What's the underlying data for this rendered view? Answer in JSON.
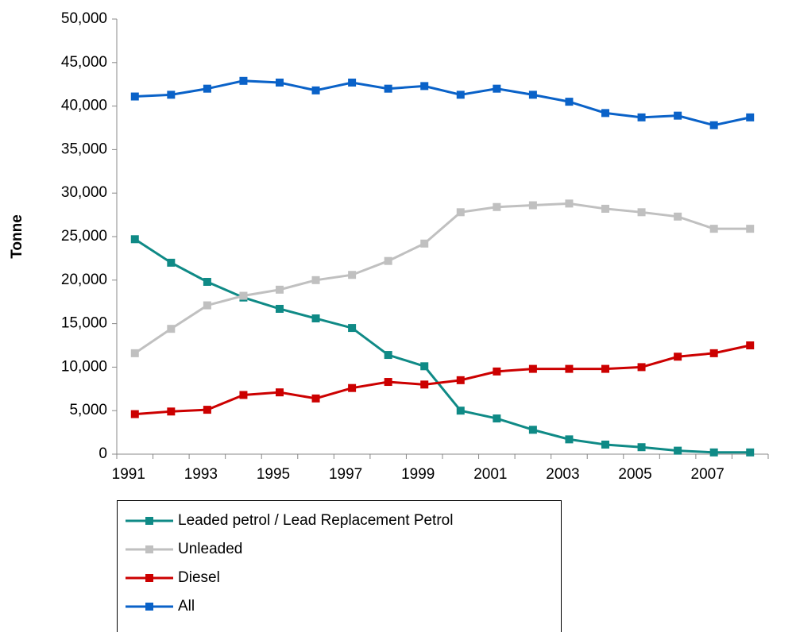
{
  "chart_data": {
    "type": "line",
    "y_label": "Tonne",
    "categories": [
      "1991",
      null,
      "1993",
      null,
      "1995",
      null,
      "1997",
      null,
      "1999",
      null,
      "2001",
      null,
      "2003",
      null,
      "2005",
      null,
      "2007",
      null
    ],
    "ylim": [
      0,
      50000
    ],
    "yticks": [
      0,
      {
        "value": 5000,
        "label": "5,000"
      },
      {
        "value": 10000,
        "label": "10,000"
      },
      {
        "value": 15000,
        "label": "15,000"
      },
      {
        "value": 20000,
        "label": "20,000"
      },
      {
        "value": 25000,
        "label": "25,000"
      },
      {
        "value": 30000,
        "label": "30,000"
      },
      {
        "value": 35000,
        "label": "35,000"
      },
      {
        "value": 40000,
        "label": "40,000"
      },
      {
        "value": 45000,
        "label": "45,000"
      },
      {
        "value": 50000,
        "label": "50,000"
      }
    ],
    "legend": "bottom",
    "series": [
      {
        "name": "Leaded petrol / Lead Replacement Petrol",
        "color": "#0f8a86",
        "values": [
          24700,
          22000,
          19800,
          18000,
          16700,
          15600,
          14500,
          11400,
          10100,
          5000,
          4100,
          2800,
          1700,
          1100,
          800,
          400,
          200,
          200
        ]
      },
      {
        "name": "Unleaded",
        "color": "#c0c0c0",
        "values": [
          11600,
          14400,
          17100,
          18200,
          18900,
          20000,
          20600,
          22200,
          24200,
          27800,
          28400,
          28600,
          28800,
          28200,
          27800,
          27300,
          25900,
          25900
        ]
      },
      {
        "name": "Diesel",
        "color": "#cc0000",
        "values": [
          4600,
          4900,
          5100,
          6800,
          7100,
          6400,
          7600,
          8300,
          8000,
          8500,
          9500,
          9800,
          9800,
          9800,
          10000,
          11200,
          11600,
          12500
        ]
      },
      {
        "name": "All",
        "color": "#0a62c8",
        "values": [
          41100,
          41300,
          42000,
          42900,
          42700,
          41800,
          42700,
          42000,
          42300,
          41300,
          42000,
          41300,
          40500,
          39200,
          38700,
          38900,
          37800,
          38700
        ]
      }
    ]
  }
}
